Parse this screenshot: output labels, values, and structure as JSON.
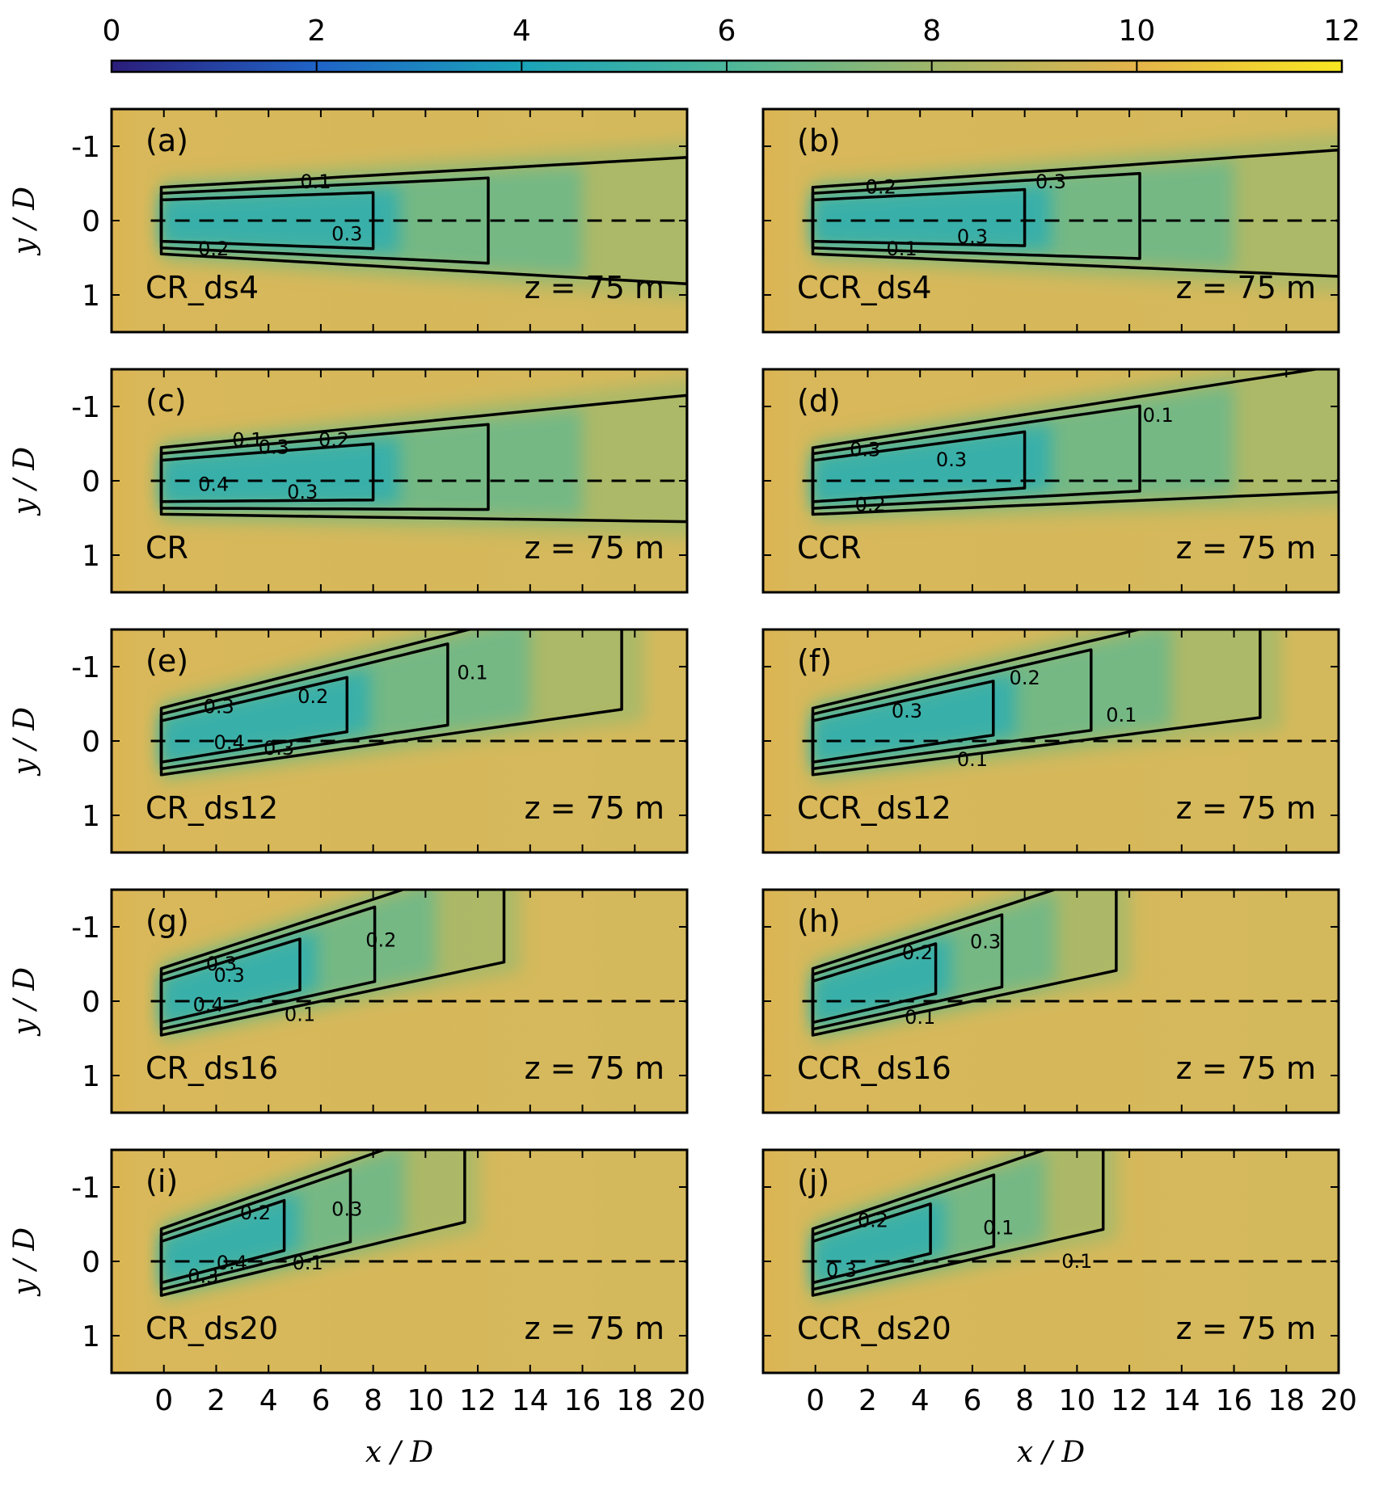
{
  "chart_data": {
    "type": "heatmap",
    "colorbar": {
      "ticks": [
        "0",
        "2",
        "4",
        "6",
        "8",
        "10",
        "12"
      ],
      "range": [
        0,
        12
      ],
      "colors": [
        "#2b1d7a",
        "#1f64c8",
        "#1aa3b9",
        "#4cb79a",
        "#9fb66a",
        "#e4b44a",
        "#f8e621"
      ]
    },
    "axes": {
      "x_title": "x / D",
      "y_title": "y / D",
      "x_ticks": [
        "0",
        "2",
        "4",
        "6",
        "8",
        "10",
        "12",
        "14",
        "16",
        "18",
        "20"
      ],
      "y_ticks": [
        "-1",
        "0",
        "1"
      ],
      "xlim": [
        -2,
        20
      ],
      "ylim": [
        1.5,
        -1.5
      ]
    },
    "panels": [
      {
        "letter": "(a)",
        "case": "CR_ds4",
        "height": "z = 75 m",
        "wake_skew": 0.0,
        "wake_length": 20,
        "contour_labels": [
          {
            "text": "0.1",
            "x": 5.8,
            "y": -0.52
          },
          {
            "text": "0.3",
            "x": 7.0,
            "y": 0.18
          },
          {
            "text": "0.2",
            "x": 1.9,
            "y": 0.38
          }
        ]
      },
      {
        "letter": "(b)",
        "case": "CCR_ds4",
        "height": "z = 75 m",
        "wake_skew": 0.05,
        "wake_length": 20,
        "contour_labels": [
          {
            "text": "0.2",
            "x": 2.5,
            "y": -0.45
          },
          {
            "text": "0.3",
            "x": 9.0,
            "y": -0.52
          },
          {
            "text": "0.1",
            "x": 3.3,
            "y": 0.38
          },
          {
            "text": "0.3",
            "x": 6.0,
            "y": 0.22
          }
        ]
      },
      {
        "letter": "(c)",
        "case": "CR",
        "height": "z = 75 m",
        "wake_skew": 0.15,
        "wake_length": 20,
        "contour_labels": [
          {
            "text": "0.1",
            "x": 3.2,
            "y": -0.55
          },
          {
            "text": "0.3",
            "x": 4.2,
            "y": -0.45
          },
          {
            "text": "0.2",
            "x": 6.5,
            "y": -0.55
          },
          {
            "text": "0.4",
            "x": 1.9,
            "y": 0.05
          },
          {
            "text": "0.3",
            "x": 5.3,
            "y": 0.15
          }
        ]
      },
      {
        "letter": "(d)",
        "case": "CCR",
        "height": "z = 75 m",
        "wake_skew": 0.35,
        "wake_length": 20,
        "contour_labels": [
          {
            "text": "0.1",
            "x": 13.1,
            "y": -0.88
          },
          {
            "text": "0.3",
            "x": 1.9,
            "y": -0.42
          },
          {
            "text": "0.3",
            "x": 5.2,
            "y": -0.28
          },
          {
            "text": "0.2",
            "x": 2.1,
            "y": 0.32
          }
        ]
      },
      {
        "letter": "(e)",
        "case": "CR_ds12",
        "height": "z = 75 m",
        "wake_skew": 0.7,
        "wake_length": 17.5,
        "contour_labels": [
          {
            "text": "0.1",
            "x": 11.8,
            "y": -0.92
          },
          {
            "text": "0.3",
            "x": 2.1,
            "y": -0.46
          },
          {
            "text": "0.2",
            "x": 5.7,
            "y": -0.6
          },
          {
            "text": "0.4",
            "x": 2.5,
            "y": 0.02
          },
          {
            "text": "0.3",
            "x": 4.4,
            "y": 0.1
          }
        ]
      },
      {
        "letter": "(f)",
        "case": "CCR_ds12",
        "height": "z = 75 m",
        "wake_skew": 0.65,
        "wake_length": 17,
        "contour_labels": [
          {
            "text": "0.2",
            "x": 8.0,
            "y": -0.85
          },
          {
            "text": "0.3",
            "x": 3.5,
            "y": -0.4
          },
          {
            "text": "0.1",
            "x": 11.7,
            "y": -0.35
          },
          {
            "text": "0.1",
            "x": 6.0,
            "y": 0.25
          }
        ]
      },
      {
        "letter": "(g)",
        "case": "CR_ds16",
        "height": "z = 75 m",
        "wake_skew": 0.95,
        "wake_length": 13,
        "contour_labels": [
          {
            "text": "0.2",
            "x": 8.3,
            "y": -0.82
          },
          {
            "text": "0.3",
            "x": 2.2,
            "y": -0.5
          },
          {
            "text": "0.3",
            "x": 2.5,
            "y": -0.35
          },
          {
            "text": "0.4",
            "x": 1.7,
            "y": 0.05
          },
          {
            "text": "0.1",
            "x": 5.2,
            "y": 0.18
          }
        ]
      },
      {
        "letter": "(h)",
        "case": "CCR_ds16",
        "height": "z = 75 m",
        "wake_skew": 0.95,
        "wake_length": 11.5,
        "contour_labels": [
          {
            "text": "0.2",
            "x": 3.9,
            "y": -0.65
          },
          {
            "text": "0.3",
            "x": 6.5,
            "y": -0.8
          },
          {
            "text": "0.1",
            "x": 4.0,
            "y": 0.22
          }
        ]
      },
      {
        "letter": "(i)",
        "case": "CR_ds20",
        "height": "z = 75 m",
        "wake_skew": 1.05,
        "wake_length": 11.5,
        "contour_labels": [
          {
            "text": "0.2",
            "x": 3.5,
            "y": -0.65
          },
          {
            "text": "0.3",
            "x": 7.0,
            "y": -0.7
          },
          {
            "text": "0.4",
            "x": 2.6,
            "y": 0.02
          },
          {
            "text": "0.3",
            "x": 1.5,
            "y": 0.2
          },
          {
            "text": "0.1",
            "x": 5.5,
            "y": 0.02
          }
        ]
      },
      {
        "letter": "(j)",
        "case": "CCR_ds20",
        "height": "z = 75 m",
        "wake_skew": 1.0,
        "wake_length": 11,
        "contour_labels": [
          {
            "text": "0.2",
            "x": 2.2,
            "y": -0.55
          },
          {
            "text": "0.1",
            "x": 7.0,
            "y": -0.45
          },
          {
            "text": "0.3",
            "x": 1.0,
            "y": 0.12
          },
          {
            "text": "0.1",
            "x": 10.0,
            "y": 0.0
          }
        ]
      }
    ]
  }
}
